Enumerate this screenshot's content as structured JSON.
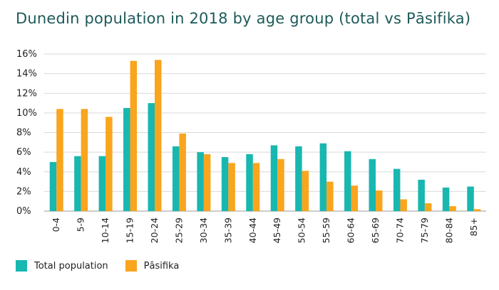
{
  "chart_data": {
    "type": "bar",
    "title": "Dunedin population in 2018 by age group (total vs Pāsifika)",
    "xlabel": "",
    "ylabel": "",
    "ylim": [
      0,
      16
    ],
    "yticks": [
      0,
      2,
      4,
      6,
      8,
      10,
      12,
      14,
      16
    ],
    "ytick_labels": [
      "0%",
      "2%",
      "4%",
      "6%",
      "8%",
      "10%",
      "12%",
      "14%",
      "16%"
    ],
    "grid": true,
    "legend_position": "bottom-left",
    "categories": [
      "0-4",
      "5-9",
      "10-14",
      "15-19",
      "20-24",
      "25-29",
      "30-34",
      "35-39",
      "40-44",
      "45-49",
      "50-54",
      "55-59",
      "60-64",
      "65-69",
      "70-74",
      "75-79",
      "80-84",
      "85+"
    ],
    "series": [
      {
        "name": "Total population",
        "color": "#18b7b0",
        "values": [
          5.0,
          5.6,
          5.6,
          10.5,
          11.0,
          6.6,
          6.0,
          5.5,
          5.8,
          6.7,
          6.6,
          6.9,
          6.1,
          5.3,
          4.3,
          3.2,
          2.4,
          2.5
        ]
      },
      {
        "name": "Pāsifika",
        "color": "#f9a51e",
        "values": [
          10.4,
          10.4,
          9.6,
          15.3,
          15.4,
          7.9,
          5.8,
          4.9,
          4.9,
          5.3,
          4.1,
          3.0,
          2.6,
          2.1,
          1.2,
          0.8,
          0.5,
          0.2
        ]
      }
    ]
  }
}
